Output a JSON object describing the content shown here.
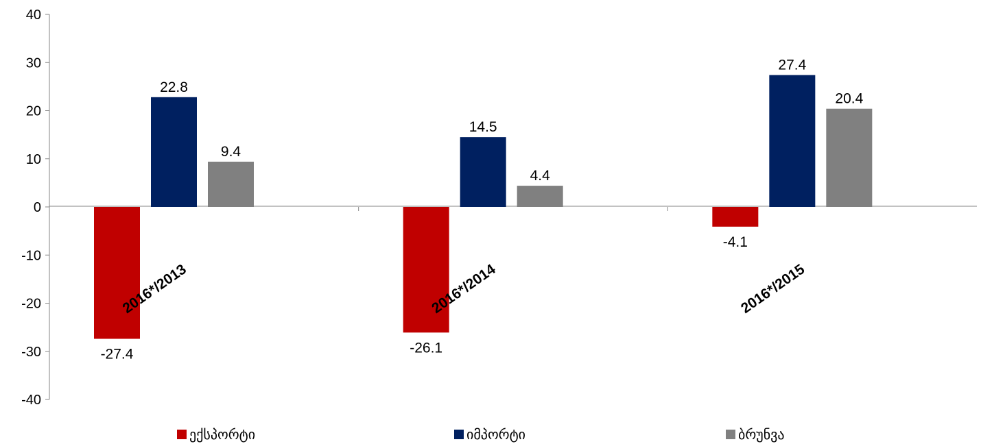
{
  "chart_data": {
    "type": "bar",
    "categories": [
      "2016*/2013",
      "2016*/2014",
      "2016*/2015"
    ],
    "series": [
      {
        "name": "ექსპორტი",
        "color": "#c00000",
        "values": [
          -27.4,
          -26.1,
          -4.1
        ]
      },
      {
        "name": "იმპორტი",
        "color": "#002060",
        "values": [
          22.8,
          14.5,
          27.4
        ]
      },
      {
        "name": "ბრუნვა",
        "color": "#808080",
        "values": [
          9.4,
          4.4,
          20.4
        ]
      }
    ],
    "data_labels": [
      [
        "-27.4",
        "-26.1",
        "-4.1"
      ],
      [
        "22.8",
        "14.5",
        "27.4"
      ],
      [
        "9.4",
        "4.4",
        "20.4"
      ]
    ],
    "y_ticks": [
      "40",
      "30",
      "20",
      "10",
      "0",
      "-10",
      "-20",
      "-30",
      "-40"
    ],
    "ylim": [
      -40,
      40
    ],
    "grid": false,
    "legend_position": "bottom"
  }
}
